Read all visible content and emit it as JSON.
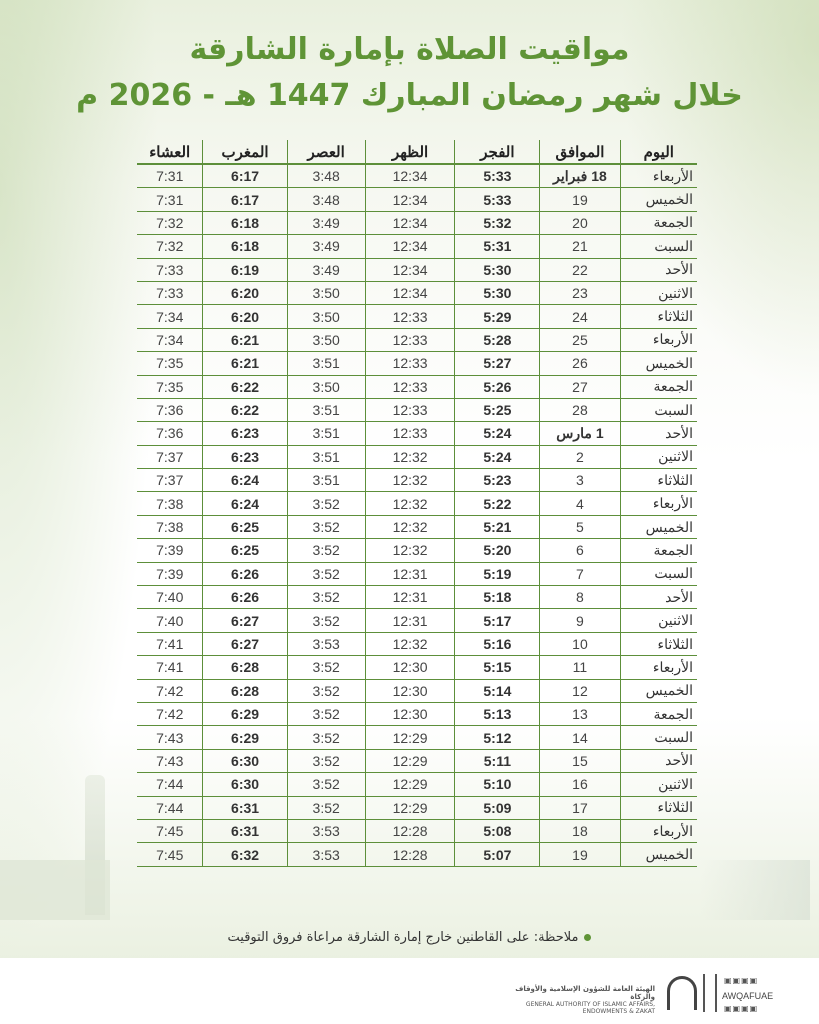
{
  "title_line1": "مواقيت الصلاة بإمارة الشارقة",
  "title_line2": "خلال شهر رمضان المبارك 1447 هـ - 2026 م",
  "columns": [
    "اليوم",
    "الموافق",
    "الفجر",
    "الظهر",
    "العصر",
    "المغرب",
    "العشاء"
  ],
  "rows": [
    [
      "الأربعاء",
      "18 فبراير",
      "5:33",
      "12:34",
      "3:48",
      "6:17",
      "7:31"
    ],
    [
      "الخميس",
      "19",
      "5:33",
      "12:34",
      "3:48",
      "6:17",
      "7:31"
    ],
    [
      "الجمعة",
      "20",
      "5:32",
      "12:34",
      "3:49",
      "6:18",
      "7:32"
    ],
    [
      "السبت",
      "21",
      "5:31",
      "12:34",
      "3:49",
      "6:18",
      "7:32"
    ],
    [
      "الأحد",
      "22",
      "5:30",
      "12:34",
      "3:49",
      "6:19",
      "7:33"
    ],
    [
      "الاثنين",
      "23",
      "5:30",
      "12:34",
      "3:50",
      "6:20",
      "7:33"
    ],
    [
      "الثلاثاء",
      "24",
      "5:29",
      "12:33",
      "3:50",
      "6:20",
      "7:34"
    ],
    [
      "الأربعاء",
      "25",
      "5:28",
      "12:33",
      "3:50",
      "6:21",
      "7:34"
    ],
    [
      "الخميس",
      "26",
      "5:27",
      "12:33",
      "3:51",
      "6:21",
      "7:35"
    ],
    [
      "الجمعة",
      "27",
      "5:26",
      "12:33",
      "3:50",
      "6:22",
      "7:35"
    ],
    [
      "السبت",
      "28",
      "5:25",
      "12:33",
      "3:51",
      "6:22",
      "7:36"
    ],
    [
      "الأحد",
      "1 مارس",
      "5:24",
      "12:33",
      "3:51",
      "6:23",
      "7:36"
    ],
    [
      "الاثنين",
      "2",
      "5:24",
      "12:32",
      "3:51",
      "6:23",
      "7:37"
    ],
    [
      "الثلاثاء",
      "3",
      "5:23",
      "12:32",
      "3:51",
      "6:24",
      "7:37"
    ],
    [
      "الأربعاء",
      "4",
      "5:22",
      "12:32",
      "3:52",
      "6:24",
      "7:38"
    ],
    [
      "الخميس",
      "5",
      "5:21",
      "12:32",
      "3:52",
      "6:25",
      "7:38"
    ],
    [
      "الجمعة",
      "6",
      "5:20",
      "12:32",
      "3:52",
      "6:25",
      "7:39"
    ],
    [
      "السبت",
      "7",
      "5:19",
      "12:31",
      "3:52",
      "6:26",
      "7:39"
    ],
    [
      "الأحد",
      "8",
      "5:18",
      "12:31",
      "3:52",
      "6:26",
      "7:40"
    ],
    [
      "الاثنين",
      "9",
      "5:17",
      "12:31",
      "3:52",
      "6:27",
      "7:40"
    ],
    [
      "الثلاثاء",
      "10",
      "5:16",
      "12:32",
      "3:53",
      "6:27",
      "7:41"
    ],
    [
      "الأربعاء",
      "11",
      "5:15",
      "12:30",
      "3:52",
      "6:28",
      "7:41"
    ],
    [
      "الخميس",
      "12",
      "5:14",
      "12:30",
      "3:52",
      "6:28",
      "7:42"
    ],
    [
      "الجمعة",
      "13",
      "5:13",
      "12:30",
      "3:52",
      "6:29",
      "7:42"
    ],
    [
      "السبت",
      "14",
      "5:12",
      "12:29",
      "3:52",
      "6:29",
      "7:43"
    ],
    [
      "الأحد",
      "15",
      "5:11",
      "12:29",
      "3:52",
      "6:30",
      "7:43"
    ],
    [
      "الاثنين",
      "16",
      "5:10",
      "12:29",
      "3:52",
      "6:30",
      "7:44"
    ],
    [
      "الثلاثاء",
      "17",
      "5:09",
      "12:29",
      "3:52",
      "6:31",
      "7:44"
    ],
    [
      "الأربعاء",
      "18",
      "5:08",
      "12:28",
      "3:53",
      "6:31",
      "7:45"
    ],
    [
      "الخميس",
      "19",
      "5:07",
      "12:28",
      "3:53",
      "6:32",
      "7:45"
    ]
  ],
  "note": "ملاحظة: على القاطنين خارج إمارة الشارقة مراعاة فروق التوقيت",
  "footer": {
    "org_ar": "الهيئة العامة للشؤون الإسلامية والأوقاف والزكاة",
    "org_en": "GENERAL AUTHORITY OF ISLAMIC AFFAIRS, ENDOWMENTS & ZAKAT",
    "brand": "AWQAFUAE"
  },
  "colors": {
    "accent": "#5f9436",
    "grid": "#5d8f3a"
  }
}
